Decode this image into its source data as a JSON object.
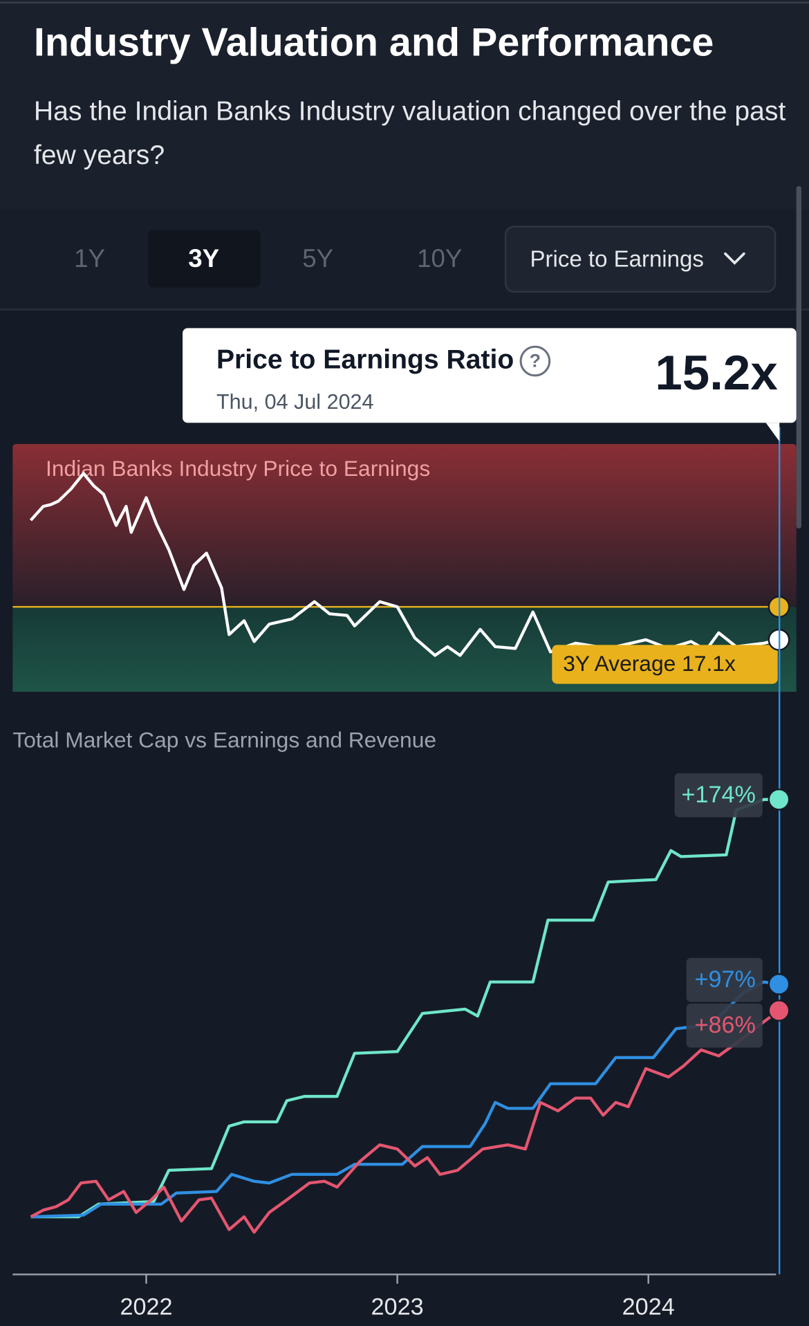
{
  "header": {
    "title": "Industry Valuation and Performance",
    "subtitle": "Has the Indian Banks Industry valuation changed over the past few years?"
  },
  "tabs": {
    "options": [
      "1Y",
      "3Y",
      "5Y",
      "10Y"
    ],
    "selected_index": 1,
    "dropdown": "Price to Earnings"
  },
  "tooltip": {
    "title": "Price to Earnings Ratio",
    "help": "?",
    "date": "Thu, 04 Jul 2024",
    "value": "15.2x"
  },
  "chart_data": [
    {
      "type": "line",
      "title": "Indian Banks Industry Price to Earnings",
      "color": "#ffffff",
      "xlim": [
        2021.5,
        2024.55
      ],
      "ylim": [
        12.2,
        26.5
      ],
      "average": {
        "value": 17.1,
        "label": "3Y Average 17.1x",
        "color": "#e9b21c"
      },
      "x": [
        2021.54,
        2021.59,
        2021.62,
        2021.65,
        2021.7,
        2021.75,
        2021.79,
        2021.83,
        2021.88,
        2021.92,
        2021.94,
        2022.0,
        2022.04,
        2022.09,
        2022.15,
        2022.19,
        2022.24,
        2022.3,
        2022.33,
        2022.39,
        2022.43,
        2022.49,
        2022.58,
        2022.67,
        2022.73,
        2022.8,
        2022.83,
        2022.93,
        2023.0,
        2023.07,
        2023.15,
        2023.2,
        2023.25,
        2023.33,
        2023.39,
        2023.47,
        2023.54,
        2023.61,
        2023.71,
        2023.84,
        2023.99,
        2024.08,
        2024.17,
        2024.23,
        2024.28,
        2024.35,
        2024.46,
        2024.52
      ],
      "values": [
        22.1,
        22.9,
        23.0,
        23.2,
        23.9,
        24.8,
        24.1,
        23.6,
        21.8,
        22.9,
        21.4,
        23.4,
        21.9,
        20.4,
        18.1,
        19.5,
        20.2,
        18.2,
        15.5,
        16.3,
        15.1,
        16.1,
        16.4,
        17.4,
        16.7,
        16.6,
        16.0,
        17.4,
        17.1,
        15.3,
        14.3,
        14.8,
        14.3,
        15.8,
        14.8,
        14.7,
        16.8,
        14.5,
        15.0,
        14.7,
        15.2,
        14.7,
        15.1,
        14.6,
        15.6,
        14.8,
        15.0,
        15.2
      ]
    },
    {
      "type": "line",
      "title": "Total Market Cap vs Earnings and Revenue",
      "xlim": [
        2021.5,
        2024.55
      ],
      "ylim": [
        -24,
        190
      ],
      "xticks": [
        2022,
        2023,
        2024
      ],
      "series": [
        {
          "color": "#6fe6c9",
          "end_label": "+174%",
          "x": [
            2021.54,
            2021.73,
            2021.81,
            2022.03,
            2022.09,
            2022.26,
            2022.33,
            2022.39,
            2022.52,
            2022.56,
            2022.63,
            2022.76,
            2022.83,
            2023.0,
            2023.1,
            2023.27,
            2023.32,
            2023.37,
            2023.54,
            2023.6,
            2023.78,
            2023.84,
            2024.03,
            2024.09,
            2024.13,
            2024.31,
            2024.35,
            2024.46,
            2024.52
          ],
          "values": [
            0,
            0,
            5.3,
            6.4,
            19.4,
            20.1,
            37.8,
            39.6,
            39.6,
            48.4,
            50.2,
            50.2,
            68.2,
            68.9,
            84.8,
            86.6,
            83.7,
            97.9,
            97.9,
            123.7,
            123.7,
            139.6,
            140.6,
            152.7,
            150.2,
            150.9,
            169.6,
            174,
            174
          ]
        },
        {
          "color": "#2f8fe2",
          "end_label": "+97%",
          "x": [
            2021.54,
            2021.75,
            2021.82,
            2022.06,
            2022.12,
            2022.28,
            2022.34,
            2022.43,
            2022.49,
            2022.58,
            2022.76,
            2022.83,
            2023.02,
            2023.1,
            2023.29,
            2023.35,
            2023.39,
            2023.44,
            2023.54,
            2023.61,
            2023.79,
            2023.87,
            2024.02,
            2024.11,
            2024.25,
            2024.38,
            2024.46,
            2024.52
          ],
          "values": [
            0,
            0.7,
            5.3,
            5.3,
            9.9,
            10.6,
            17.7,
            14.8,
            14.1,
            17.7,
            17.7,
            21.9,
            21.9,
            29.3,
            29.3,
            38.9,
            47.7,
            45.2,
            45.2,
            55.5,
            55.5,
            66.4,
            66.4,
            78.4,
            80.2,
            93.6,
            97.9,
            97
          ]
        },
        {
          "color": "#e45670",
          "end_label": "+86%",
          "x": [
            2021.54,
            2021.59,
            2021.64,
            2021.69,
            2021.74,
            2021.8,
            2021.85,
            2021.91,
            2021.96,
            2022.02,
            2022.07,
            2022.14,
            2022.21,
            2022.26,
            2022.33,
            2022.39,
            2022.43,
            2022.49,
            2022.56,
            2022.65,
            2022.71,
            2022.76,
            2022.85,
            2022.93,
            2023.0,
            2023.07,
            2023.12,
            2023.17,
            2023.24,
            2023.34,
            2023.44,
            2023.51,
            2023.57,
            2023.64,
            2023.71,
            2023.77,
            2023.82,
            2023.87,
            2023.92,
            2023.99,
            2024.08,
            2024.14,
            2024.21,
            2024.28,
            2024.35,
            2024.46,
            2024.52
          ],
          "values": [
            0,
            2.8,
            4.2,
            7.1,
            14.1,
            14.8,
            7.1,
            10.6,
            1.8,
            7.1,
            12.4,
            -1.8,
            7.1,
            7.8,
            -5.3,
            0,
            -6.4,
            1.8,
            7.1,
            14.1,
            14.8,
            12.4,
            23.0,
            30.0,
            28.3,
            21.2,
            24.7,
            17.7,
            19.4,
            28.3,
            30.0,
            28.3,
            47.7,
            44.2,
            49.5,
            49.5,
            42.4,
            47.7,
            45.9,
            61.8,
            58.3,
            62.9,
            69.6,
            67.1,
            72.4,
            81.3,
            86
          ]
        }
      ]
    }
  ]
}
